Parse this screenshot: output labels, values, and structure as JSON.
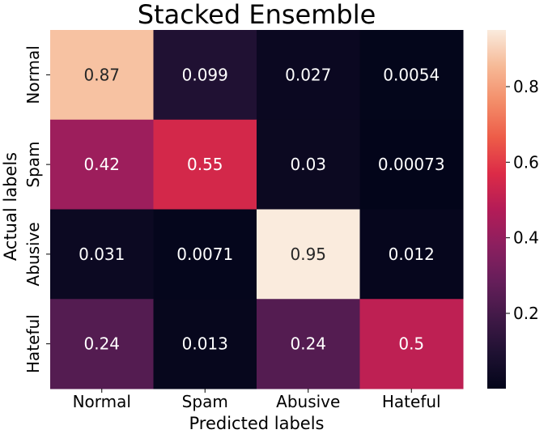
{
  "chart_data": {
    "type": "heatmap",
    "title": "Stacked Ensemble",
    "xlabel": "Predicted labels",
    "ylabel": "Actual labels",
    "x_categories": [
      "Normal",
      "Spam",
      "Abusive",
      "Hateful"
    ],
    "y_categories": [
      "Normal",
      "Spam",
      "Abusive",
      "Hateful"
    ],
    "values": [
      [
        0.87,
        0.099,
        0.027,
        0.0054
      ],
      [
        0.42,
        0.55,
        0.03,
        0.00073
      ],
      [
        0.031,
        0.0071,
        0.95,
        0.012
      ],
      [
        0.24,
        0.013,
        0.24,
        0.5
      ]
    ],
    "cell_labels": [
      [
        "0.87",
        "0.099",
        "0.027",
        "0.0054"
      ],
      [
        "0.42",
        "0.55",
        "0.03",
        "0.00073"
      ],
      [
        "0.031",
        "0.0071",
        "0.95",
        "0.012"
      ],
      [
        "0.24",
        "0.013",
        "0.24",
        "0.5"
      ]
    ],
    "colorbar": {
      "min": 0.00073,
      "max": 0.95,
      "ticks": [
        0.2,
        0.4,
        0.6,
        0.8
      ],
      "tick_labels": [
        "0.2",
        "0.4",
        "0.6",
        "0.8"
      ],
      "colormap": "rocket"
    }
  }
}
